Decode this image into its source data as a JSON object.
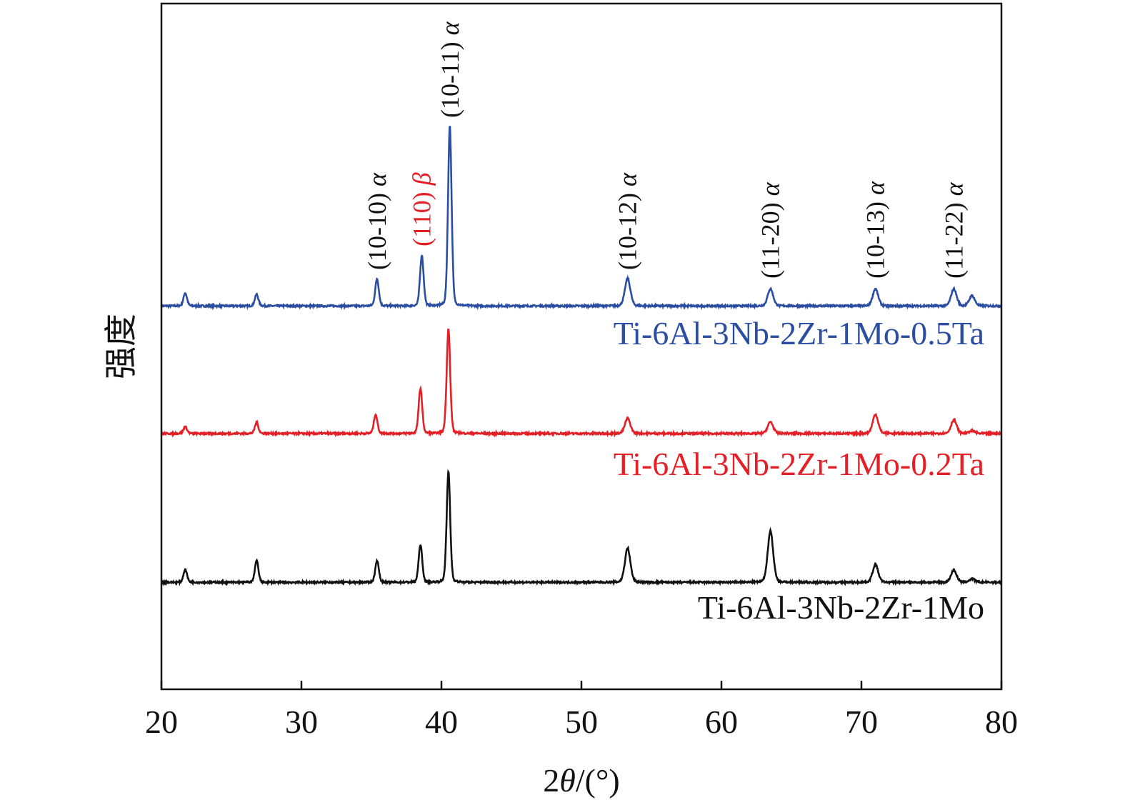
{
  "chart_data": {
    "type": "line",
    "title": "",
    "xlabel_prefix": "2",
    "xlabel_var": "θ",
    "xlabel_suffix": "/(°)",
    "ylabel": "强度",
    "xlim": [
      20,
      80
    ],
    "ylim": [
      0,
      100
    ],
    "y_units": "arbitrary (no tick labels shown)",
    "xticks": [
      20,
      30,
      40,
      50,
      60,
      70,
      80
    ],
    "grid": false,
    "series": [
      {
        "name": "Ti-6Al-3Nb-2Zr-1Mo-0.5Ta",
        "color": "#2b4ea2",
        "baseline": 55.9,
        "peaks": [
          {
            "x": 21.7,
            "y": 57.8
          },
          {
            "x": 26.8,
            "y": 57.6
          },
          {
            "x": 35.4,
            "y": 59.9
          },
          {
            "x": 38.6,
            "y": 63.3
          },
          {
            "x": 40.6,
            "y": 82.3
          },
          {
            "x": 53.3,
            "y": 59.9
          },
          {
            "x": 63.5,
            "y": 58.4
          },
          {
            "x": 71.0,
            "y": 58.4
          },
          {
            "x": 76.6,
            "y": 58.4
          },
          {
            "x": 77.9,
            "y": 57.4
          }
        ]
      },
      {
        "name": "Ti-6Al-3Nb-2Zr-1Mo-0.2Ta",
        "color": "#e41f26",
        "baseline": 37.3,
        "peaks": [
          {
            "x": 21.7,
            "y": 38.3
          },
          {
            "x": 26.8,
            "y": 38.9
          },
          {
            "x": 35.3,
            "y": 40.1
          },
          {
            "x": 38.5,
            "y": 43.9
          },
          {
            "x": 40.5,
            "y": 52.6
          },
          {
            "x": 53.3,
            "y": 39.5
          },
          {
            "x": 63.5,
            "y": 39.0
          },
          {
            "x": 71.0,
            "y": 40.1
          },
          {
            "x": 76.6,
            "y": 39.3
          },
          {
            "x": 77.9,
            "y": 37.7
          }
        ]
      },
      {
        "name": "Ti-6Al-3Nb-2Zr-1Mo",
        "color": "#111111",
        "baseline": 15.6,
        "peaks": [
          {
            "x": 21.7,
            "y": 17.5
          },
          {
            "x": 26.8,
            "y": 18.8
          },
          {
            "x": 35.4,
            "y": 18.8
          },
          {
            "x": 38.5,
            "y": 21.1
          },
          {
            "x": 40.5,
            "y": 31.7
          },
          {
            "x": 53.3,
            "y": 20.6
          },
          {
            "x": 63.5,
            "y": 23.1
          },
          {
            "x": 71.0,
            "y": 18.2
          },
          {
            "x": 76.6,
            "y": 17.4
          },
          {
            "x": 77.9,
            "y": 16.1
          }
        ]
      }
    ],
    "annotations": [
      {
        "text": "(10-10)",
        "phase": "α",
        "x": 35.4,
        "color": "#111111"
      },
      {
        "text": "(110)",
        "phase": "β",
        "x": 38.6,
        "color": "#e41f26"
      },
      {
        "text": "(10-11)",
        "phase": "α",
        "x": 40.6,
        "color": "#111111"
      },
      {
        "text": "(10-12)",
        "phase": "α",
        "x": 53.3,
        "color": "#111111"
      },
      {
        "text": "(11-20)",
        "phase": "α",
        "x": 63.5,
        "color": "#111111"
      },
      {
        "text": "(10-13)",
        "phase": "α",
        "x": 71.0,
        "color": "#111111"
      },
      {
        "text": "(11-22)",
        "phase": "α",
        "x": 76.6,
        "color": "#111111"
      }
    ]
  }
}
